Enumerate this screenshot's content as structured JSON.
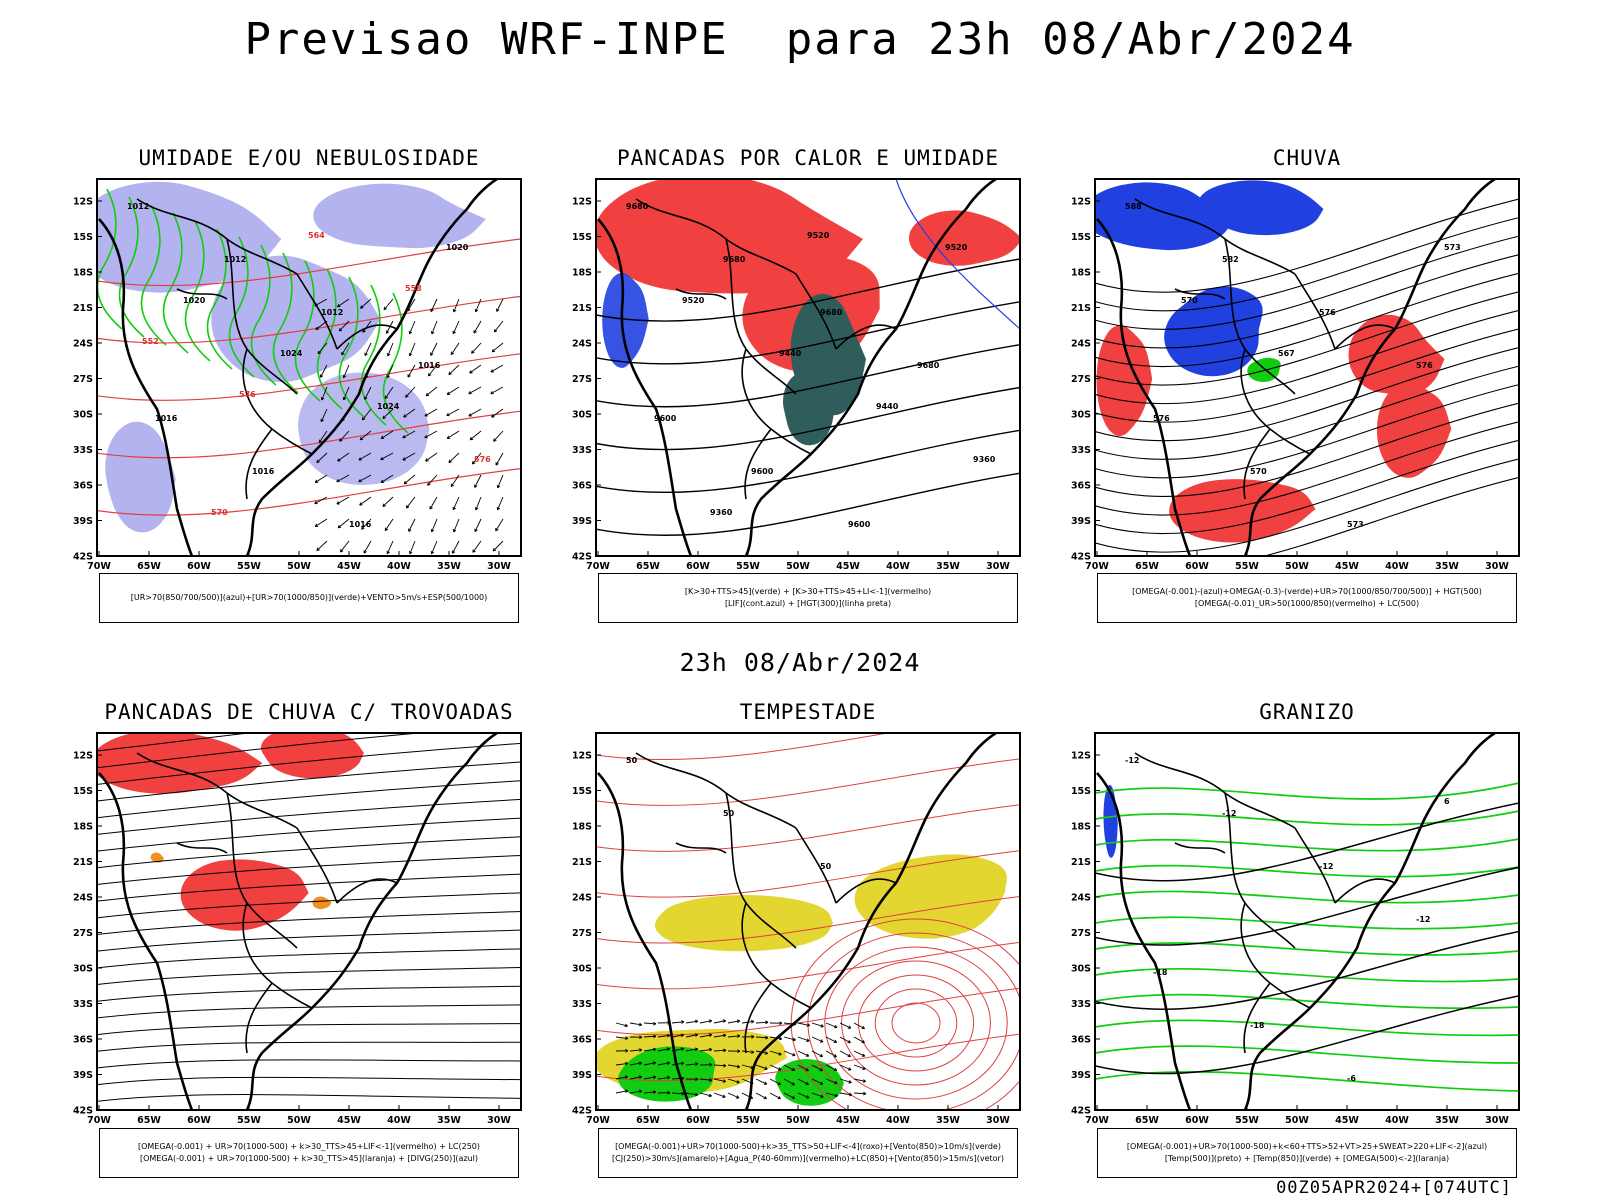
{
  "title": "Previsao WRF-INPE  para 23h 08/Abr/2024",
  "subtitle": "23h 08/Abr/2024",
  "footer": "00Z05APR2024+[074UTC]",
  "axes": {
    "lat_labels": [
      "12S",
      "15S",
      "18S",
      "21S",
      "24S",
      "27S",
      "30S",
      "33S",
      "36S",
      "39S",
      "42S"
    ],
    "lon_labels": [
      "70W",
      "65W",
      "60W",
      "55W",
      "50W",
      "45W",
      "40W",
      "35W",
      "30W"
    ]
  },
  "colors": {
    "blue_moist": "#b3b3f0",
    "green": "#11cc11",
    "red": "#f04040",
    "dark_teal": "#2f5d5b",
    "blue": "#2040e0",
    "yellow": "#e3d630",
    "orange": "#f09020"
  },
  "panels": [
    {
      "title": "UMIDADE E/OU NEBULOSIDADE",
      "legend": [
        "[UR>70(850/700/500)](azul)+[UR>70(1000/850)](verde)+VENTO>5m/s+ESP(500/1000)"
      ],
      "contour_labels": [
        "1012",
        "1012",
        "1012",
        "1016",
        "1016",
        "1016",
        "1016",
        "1020",
        "1020",
        "1024",
        "1024",
        "576",
        "570",
        "564",
        "558",
        "552",
        "576"
      ]
    },
    {
      "title": "PANCADAS POR CALOR E UMIDADE",
      "legend": [
        "[K>30+TTS>45](verde) + [K>30+TTS>45+LI<-1](vermelho)",
        "[LIF](cont.azul) + [HGT(300)](linha preta)"
      ],
      "contour_labels": [
        "9680",
        "9680",
        "9680",
        "9680",
        "9600",
        "9600",
        "9600",
        "9520",
        "9520",
        "9440",
        "9440",
        "9360",
        "9360",
        "9520"
      ]
    },
    {
      "title": "CHUVA",
      "legend": [
        "[OMEGA(-0.001)-(azul)+OMEGA(-0.3)-(verde)+UR>70(1000/850/700/500)] + HGT(500)",
        "[OMEGA(-0.01)_UR>50(1000/850)(vermelho) + LC(500)"
      ],
      "contour_labels": [
        "588",
        "582",
        "576",
        "576",
        "576",
        "570",
        "573",
        "573",
        "570",
        "567"
      ]
    },
    {
      "title": "PANCADAS DE CHUVA C/ TROVOADAS",
      "legend": [
        "[OMEGA(-0.001) + UR>70(1000-500) + k>30_TTS>45+LIF<-1](vermelho) + LC(250)",
        "[OMEGA(-0.001) + UR>70(1000-500) + k>30_TTS>45](laranja) + [DIVG(250)](azul)"
      ],
      "contour_labels": []
    },
    {
      "title": "TEMPESTADE",
      "legend": [
        "[OMEGA(-0.001)+UR>70(1000-500)+k>35_TTS>50+LIF<-4](roxo)+[Vento(850)>10m/s](verde)",
        "[CJ(250)>30m/s](amarelo)+[Agua_P(40-60mm)](vermelho)+LC(850)+[Vento(850)>15m/s](vetor)"
      ],
      "contour_labels": [
        "50",
        "50",
        "50"
      ]
    },
    {
      "title": "GRANIZO",
      "legend": [
        "[OMEGA(-0.001)+UR>70(1000-500)+k<60+TTS>52+VT>25+SWEAT>220+LIF<-2](azul)",
        "[Temp(500)](preto) + [Temp(850)](verde) + [OMEGA(500)<-2](laranja)"
      ],
      "contour_labels": [
        "-12",
        "-12",
        "-12",
        "-12",
        "-18",
        "-18",
        "-6",
        "6"
      ]
    }
  ]
}
